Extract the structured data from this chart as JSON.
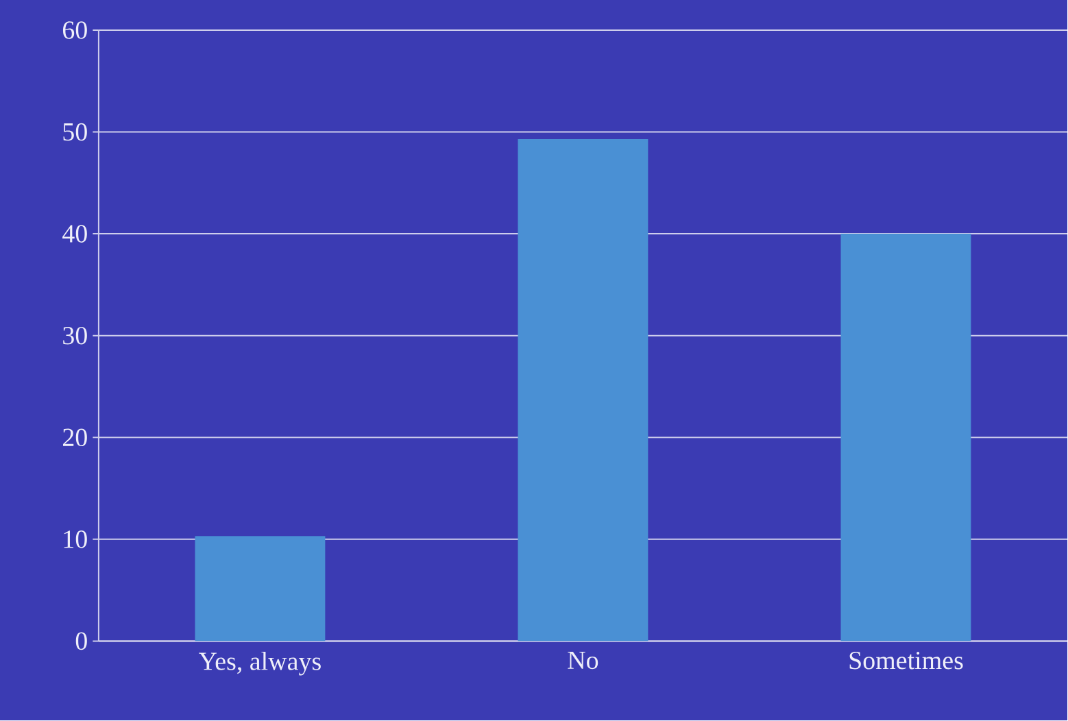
{
  "chart_data": {
    "type": "bar",
    "categories": [
      "Yes, always",
      "No",
      "Sometimes"
    ],
    "values": [
      10.3,
      49.3,
      40
    ],
    "color": "#4a90d4",
    "ylim": [
      0,
      60
    ],
    "yticks": [
      0,
      10,
      20,
      30,
      40,
      50,
      60
    ],
    "grid": "y"
  }
}
